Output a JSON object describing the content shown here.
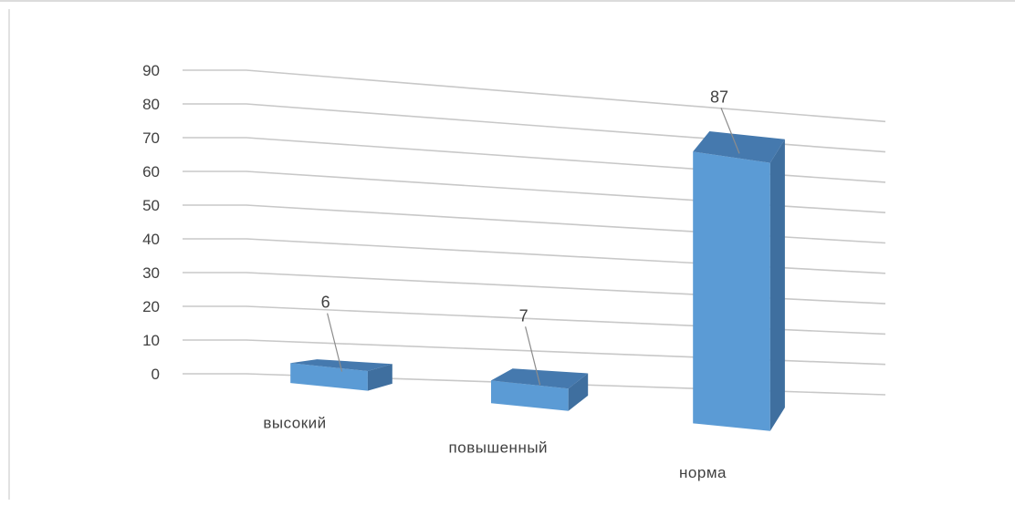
{
  "chart_data": {
    "type": "bar",
    "categories": [
      "высокий",
      "повышенный",
      "норма"
    ],
    "values": [
      6,
      7,
      87
    ],
    "data_labels": [
      "6",
      "7",
      "87"
    ],
    "y_ticks": [
      "0",
      "10",
      "20",
      "30",
      "40",
      "50",
      "60",
      "70",
      "80",
      "90"
    ],
    "ylim": [
      0,
      90
    ],
    "grid": true,
    "style": "3d-column",
    "colors": {
      "bar_front": "#5b9bd5",
      "bar_top": "#4579ae",
      "bar_side": "#3f6f9f",
      "gridline": "#c8c8c8",
      "text": "#404040"
    }
  }
}
